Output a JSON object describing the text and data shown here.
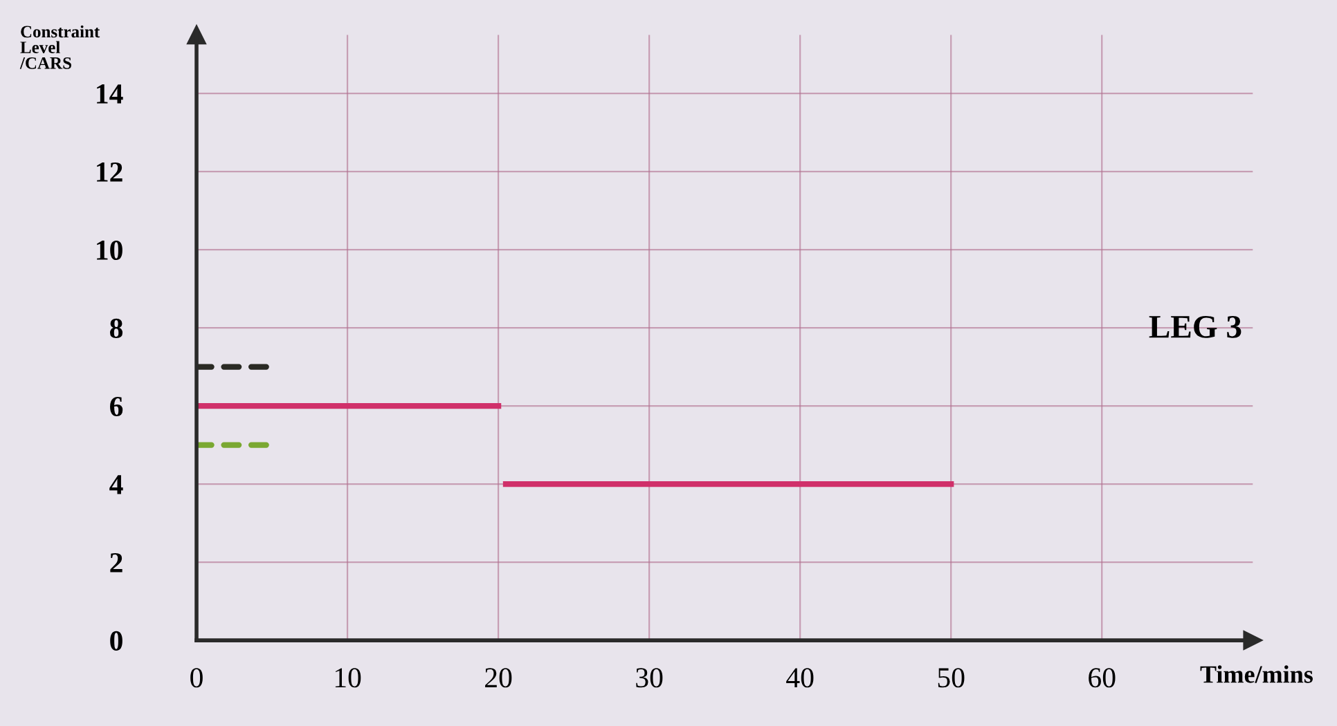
{
  "chart_data": {
    "type": "line",
    "ylabel": "Constraint Level /CARS",
    "xlabel": "Time/mins",
    "annotations": [
      "LEG 3"
    ],
    "xlim": [
      0,
      70
    ],
    "xticks": [
      0,
      10,
      20,
      30,
      40,
      50,
      60
    ],
    "ylim": [
      0,
      15.5
    ],
    "yticks": [
      0,
      2,
      4,
      6,
      8,
      10,
      12,
      14
    ],
    "grid": true,
    "series": [
      {
        "color": "#2a2a24",
        "x": [
          0,
          5
        ],
        "values": [
          7,
          7
        ],
        "line_style": "dashed"
      },
      {
        "color": "#d0306a",
        "x": [
          0,
          20,
          20.2,
          20.5,
          50
        ],
        "values": [
          6,
          6,
          null,
          4,
          4
        ],
        "line_style": "solid"
      },
      {
        "color": "#7aa832",
        "x": [
          0,
          5
        ],
        "values": [
          5,
          5
        ],
        "line_style": "dashed"
      }
    ]
  }
}
